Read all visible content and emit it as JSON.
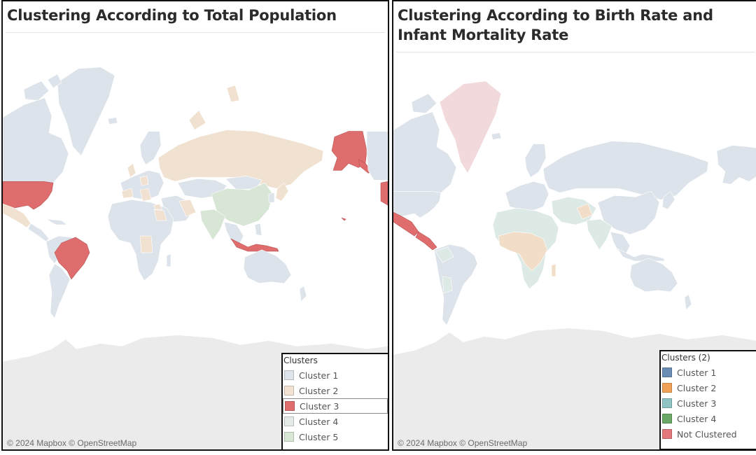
{
  "left_panel": {
    "title": "Clustering According to Total Population",
    "attribution": "© 2024 Mapbox  © OpenStreetMap",
    "legend": {
      "title": "Clusters",
      "items": [
        {
          "label": "Cluster 1",
          "color": "#dde4ec"
        },
        {
          "label": "Cluster 2",
          "color": "#f3e2d1"
        },
        {
          "label": "Cluster 3",
          "color": "#e06d6d"
        },
        {
          "label": "Cluster 4",
          "color": "#e4ebe7"
        },
        {
          "label": "Cluster 5",
          "color": "#d8e6d6"
        }
      ],
      "selected": "Cluster 3"
    }
  },
  "right_panel": {
    "title": "Clustering According to Birth Rate and Infant Mortality Rate",
    "attribution": "© 2024 Mapbox  © OpenStreetMap",
    "legend": {
      "title": "Clusters (2)",
      "items": [
        {
          "label": "Cluster 1",
          "color": "#6b8cb3"
        },
        {
          "label": "Cluster 2",
          "color": "#f0a155"
        },
        {
          "label": "Cluster 3",
          "color": "#8fc4c2"
        },
        {
          "label": "Cluster 4",
          "color": "#6aa865"
        },
        {
          "label": "Not Clustered",
          "color": "#e2787a"
        }
      ]
    }
  },
  "colors": {
    "base_land": "#dde3ea",
    "antarctica": "#ebebeb",
    "cluster2_faded": "#f1e1d1",
    "cluster3": "#e06d6d",
    "cluster4_faded": "#e3ebe6",
    "cluster5_faded": "#d8e6d6",
    "not_clustered_faded": "#f1d9dc",
    "right_cluster2_faded": "#f2ddc8",
    "right_cluster3_faded": "#dce9e5"
  }
}
